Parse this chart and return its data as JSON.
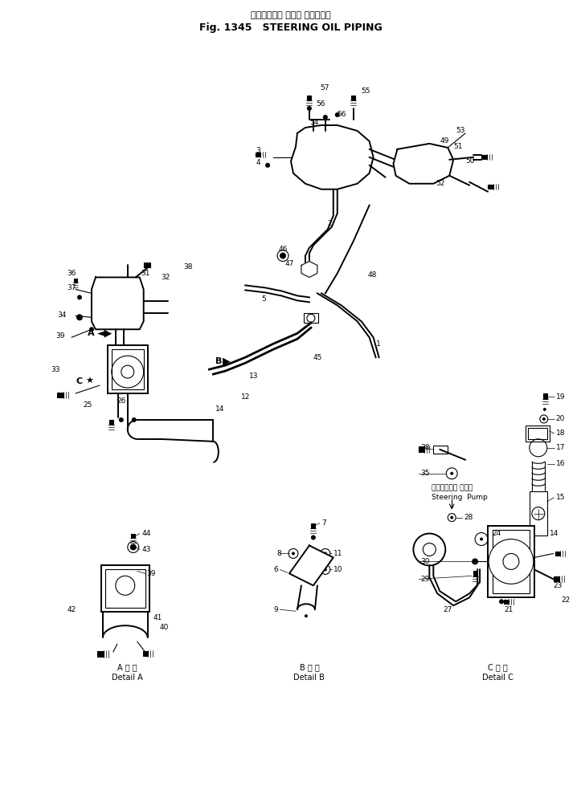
{
  "bg_color": "#ffffff",
  "fig_width": 7.23,
  "fig_height": 9.89,
  "title_jp": "ステアリング オイル パイピング",
  "title_en": "Fig. 1345   STEERING OIL PIPING",
  "steering_pump_jp": "ステアリング ポンプ",
  "steering_pump_en": "Steering  Pump",
  "detail_a_jp": "A 詳 図",
  "detail_a_en": "Detail A",
  "detail_b_jp": "B 詳 図",
  "detail_b_en": "Detail B",
  "detail_c_jp": "C 詳 図",
  "detail_c_en": "Detail C"
}
